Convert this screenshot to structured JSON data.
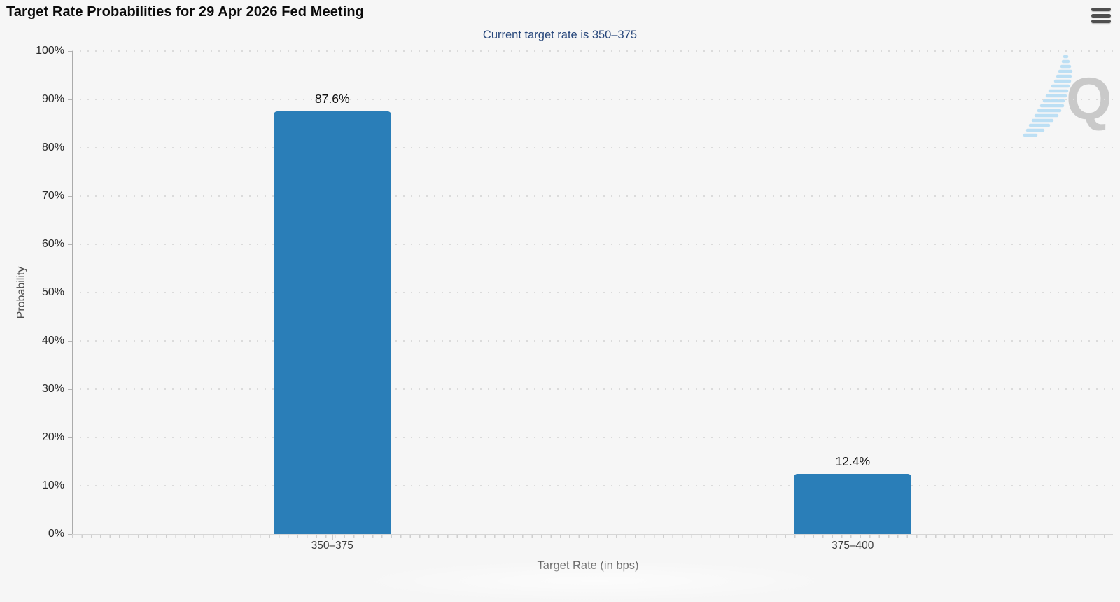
{
  "header": {
    "title": "Target Rate Probabilities for 29 Apr 2026 Fed Meeting"
  },
  "menu": {
    "icon": "hamburger-menu-icon"
  },
  "chart_data": {
    "type": "bar",
    "title": "Target Rate Probabilities for 29 Apr 2026 Fed Meeting",
    "subtitle": "Current target rate is 350–375",
    "categories": [
      "350–375",
      "375–400"
    ],
    "values": [
      87.6,
      12.4
    ],
    "value_labels": [
      "87.6%",
      "12.4%"
    ],
    "xlabel": "Target Rate (in bps)",
    "ylabel": "Probability",
    "ylim": [
      0,
      100
    ],
    "ytick_step": 10,
    "ytick_labels": [
      "100%",
      "90%",
      "80%",
      "70%",
      "60%",
      "50%",
      "40%",
      "30%",
      "20%",
      "10%",
      "0%"
    ],
    "grid": "dotted-horizontal",
    "legend": "none",
    "bar_color": "#2a7eb8"
  },
  "watermark": {
    "letter": "Q",
    "letter_color": "#c9c9c9",
    "streak_color": "#bcdff4"
  },
  "colors": {
    "bar": "#2a7eb8",
    "subtitle_text": "#27477b",
    "title_text": "#0a0a0a",
    "background": "#f6f6f6"
  }
}
